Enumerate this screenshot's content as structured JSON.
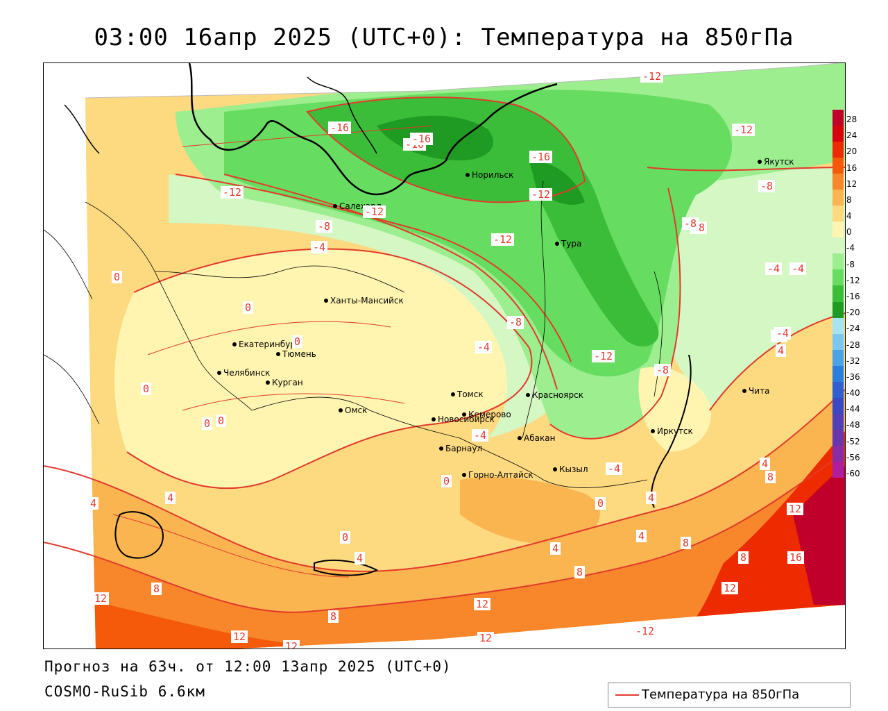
{
  "title": "03:00 16апр 2025 (UTC+0): Температура на 850гПа",
  "footer": {
    "forecast": "Прогноз на 63ч. от 12:00 13апр 2025 (UTC+0)",
    "model": "COSMO-RuSib 6.6км"
  },
  "legend": {
    "series_label": "Температура на 850гПа",
    "series_color": "#e23a2c",
    "scale_ticks": [
      "28",
      "24",
      "20",
      "16",
      "12",
      "8",
      "4",
      "0",
      "-4",
      "-8",
      "-12",
      "-16",
      "-20",
      "-24",
      "-28",
      "-32",
      "-36",
      "-40",
      "-44",
      "-48",
      "-52",
      "-56",
      "-60"
    ],
    "scale_colors": [
      "#c0002a",
      "#d9000f",
      "#ee2a00",
      "#f45a0a",
      "#f8862a",
      "#fab450",
      "#fdd980",
      "#fff4b0",
      "#d4f7c4",
      "#9cee8e",
      "#66dd60",
      "#3cbd3a",
      "#1f9a22",
      "#a6e4f2",
      "#7cc7ef",
      "#4aa3e6",
      "#2b7fdc",
      "#2f5fd0",
      "#3b48c4",
      "#5240b8",
      "#6a36ad",
      "#8a2ca6",
      "#b01ea0"
    ]
  },
  "cities": [
    {
      "name": "Якутск",
      "icon": "city-dot-icon"
    },
    {
      "name": "Норильск",
      "icon": "city-dot-icon"
    },
    {
      "name": "Салехард",
      "icon": "city-dot-icon"
    },
    {
      "name": "Тура",
      "icon": "city-dot-icon"
    },
    {
      "name": "Ханты-Мансийск",
      "icon": "city-dot-icon"
    },
    {
      "name": "Екатеринбург",
      "icon": "city-dot-icon"
    },
    {
      "name": "Тюмень",
      "icon": "city-dot-icon"
    },
    {
      "name": "Челябинск",
      "icon": "city-dot-icon"
    },
    {
      "name": "Курган",
      "icon": "city-dot-icon"
    },
    {
      "name": "Омск",
      "icon": "city-dot-icon"
    },
    {
      "name": "Томск",
      "icon": "city-dot-icon"
    },
    {
      "name": "Красноярск",
      "icon": "city-dot-icon"
    },
    {
      "name": "Новосибирск",
      "icon": "city-dot-icon"
    },
    {
      "name": "Кемерово",
      "icon": "city-dot-icon"
    },
    {
      "name": "Абакан",
      "icon": "city-dot-icon"
    },
    {
      "name": "Иркутск",
      "icon": "city-dot-icon"
    },
    {
      "name": "Чита",
      "icon": "city-dot-icon"
    },
    {
      "name": "Барнаул",
      "icon": "city-dot-icon"
    },
    {
      "name": "Горно-Алтайск",
      "icon": "city-dot-icon"
    },
    {
      "name": "Кызыл",
      "icon": "city-dot-icon"
    }
  ],
  "isotherm_labels": [
    "-12",
    "-16",
    "-16",
    "-16",
    "-12",
    "-12",
    "-12",
    "-8",
    "-12",
    "-8",
    "-8",
    "-4",
    "-4",
    "0",
    "0",
    "0",
    "0",
    "-8",
    "-4",
    "-12",
    "-8",
    "-4",
    "-4",
    "4",
    "0",
    "-12",
    "-8",
    "-4",
    "-8",
    "-4",
    "-4",
    "0",
    "0",
    "4",
    "8",
    "4",
    "4",
    "0",
    "0",
    "4",
    "4",
    "4",
    "8",
    "4",
    "8",
    "8",
    "12",
    "16",
    "12",
    "12",
    "8",
    "8",
    "12",
    "12",
    "12",
    "12",
    "-12",
    "-16"
  ]
}
